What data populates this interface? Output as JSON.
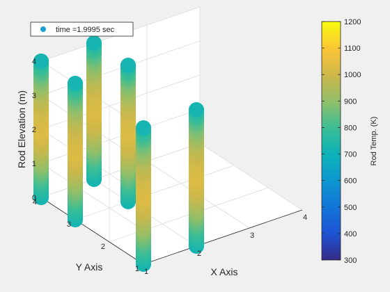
{
  "chart_data": {
    "type": "scatter",
    "subtype": "3d-scatter",
    "legend": {
      "label": "time =1.9995 sec",
      "placement": "top-left",
      "marker_color": "#1a9fd0"
    },
    "xlabel": "X Axis",
    "ylabel": "Y Axis",
    "zlabel": "Rod Elevation (m)",
    "xlim": [
      1,
      4
    ],
    "ylim": [
      1,
      4
    ],
    "zlim": [
      0,
      4
    ],
    "xticks": [
      "1",
      "2",
      "3",
      "4"
    ],
    "yticks": [
      "1",
      "2",
      "3",
      "4"
    ],
    "zticks": [
      "0",
      "1",
      "2",
      "3",
      "4"
    ],
    "grid": true,
    "view": "3d-default",
    "colorbar": {
      "label": "Rod Temp. (K)",
      "range": [
        300,
        1200
      ],
      "ticks": [
        "300",
        "400",
        "500",
        "600",
        "700",
        "800",
        "900",
        "1000",
        "1100",
        "1200"
      ],
      "colormap": "parula"
    },
    "series": [
      {
        "rod_x": 1,
        "rod_y": 1,
        "z": [
          0,
          0.5,
          1,
          1.5,
          2,
          2.5,
          3,
          3.5,
          4
        ],
        "temperature": [
          710,
          800,
          900,
          980,
          1030,
          1010,
          960,
          870,
          760
        ]
      },
      {
        "rod_x": 1,
        "rod_y": 3,
        "z": [
          0,
          0.5,
          1,
          1.5,
          2,
          2.5,
          3,
          3.5,
          4
        ],
        "temperature": [
          710,
          800,
          900,
          980,
          1030,
          1010,
          960,
          870,
          760
        ]
      },
      {
        "rod_x": 1,
        "rod_y": 4,
        "z": [
          0,
          0.5,
          1,
          1.5,
          2,
          2.5,
          3,
          3.5,
          4
        ],
        "temperature": [
          710,
          800,
          900,
          980,
          1030,
          1010,
          960,
          870,
          760
        ]
      },
      {
        "rod_x": 2,
        "rod_y": 1,
        "z": [
          0,
          0.5,
          1,
          1.5,
          2,
          2.5,
          3,
          3.5,
          4
        ],
        "temperature": [
          710,
          800,
          900,
          980,
          1030,
          1010,
          960,
          870,
          760
        ]
      },
      {
        "rod_x": 2,
        "rod_y": 3,
        "z": [
          0,
          0.5,
          1,
          1.5,
          2,
          2.5,
          3,
          3.5,
          4
        ],
        "temperature": [
          710,
          800,
          900,
          980,
          1030,
          1010,
          960,
          870,
          760
        ]
      },
      {
        "rod_x": 2,
        "rod_y": 4,
        "z": [
          0,
          0.5,
          1,
          1.5,
          2,
          2.5,
          3,
          3.5,
          4
        ],
        "temperature": [
          710,
          800,
          900,
          980,
          1030,
          1010,
          960,
          870,
          760
        ]
      }
    ]
  }
}
